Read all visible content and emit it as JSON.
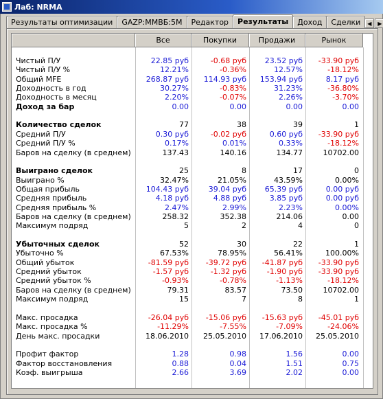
{
  "window": {
    "title": "Лаб: NRMA"
  },
  "tabs": [
    {
      "label": "Результаты оптимизации"
    },
    {
      "label": "GAZP:MMBБ:5M"
    },
    {
      "label": "Редактор"
    },
    {
      "label": "Результаты",
      "active": true
    },
    {
      "label": "Доход"
    },
    {
      "label": "Сделки"
    }
  ],
  "columns": [
    "Все",
    "Покупки",
    "Продажи",
    "Рынок"
  ],
  "rows": [
    {
      "label": "Чистый П/У",
      "values": [
        "22.85 руб",
        "-0.68 руб",
        "23.52 руб",
        "-33.90 руб"
      ],
      "colors": [
        "blue",
        "red",
        "blue",
        "red"
      ],
      "bold": false
    },
    {
      "label": "Чистый П/У %",
      "values": [
        "12.21%",
        "-0.36%",
        "12.57%",
        "-18.12%"
      ],
      "colors": [
        "blue",
        "red",
        "blue",
        "red"
      ],
      "bold": false
    },
    {
      "label": "Общий MFE",
      "values": [
        "268.87 руб",
        "114.93 руб",
        "153.94 руб",
        "8.17 руб"
      ],
      "colors": [
        "blue",
        "blue",
        "blue",
        "blue"
      ],
      "bold": false
    },
    {
      "label": "Доходность в год",
      "values": [
        "30.27%",
        "-0.83%",
        "31.23%",
        "-36.80%"
      ],
      "colors": [
        "blue",
        "red",
        "blue",
        "red"
      ],
      "bold": false
    },
    {
      "label": "Доходность в месяц",
      "values": [
        "2.20%",
        "-0.07%",
        "2.26%",
        "-3.70%"
      ],
      "colors": [
        "blue",
        "red",
        "blue",
        "red"
      ],
      "bold": false
    },
    {
      "label": "Доход за бар",
      "values": [
        "0.00",
        "0.00",
        "0.00",
        "0.00"
      ],
      "colors": [
        "blue",
        "blue",
        "blue",
        "blue"
      ],
      "bold": true
    },
    {
      "label": "",
      "values": [
        "",
        "",
        "",
        ""
      ],
      "colors": [
        "black",
        "black",
        "black",
        "black"
      ],
      "bold": false
    },
    {
      "label": "Количество сделок",
      "values": [
        "77",
        "38",
        "39",
        "1"
      ],
      "colors": [
        "black",
        "black",
        "black",
        "black"
      ],
      "bold": true
    },
    {
      "label": "Средний П/У",
      "values": [
        "0.30 руб",
        "-0.02 руб",
        "0.60 руб",
        "-33.90 руб"
      ],
      "colors": [
        "blue",
        "red",
        "blue",
        "red"
      ],
      "bold": false
    },
    {
      "label": "Средний П/У %",
      "values": [
        "0.17%",
        "0.01%",
        "0.33%",
        "-18.12%"
      ],
      "colors": [
        "blue",
        "blue",
        "blue",
        "red"
      ],
      "bold": false
    },
    {
      "label": "Баров на сделку (в среднем)",
      "values": [
        "137.43",
        "140.16",
        "134.77",
        "10702.00"
      ],
      "colors": [
        "black",
        "black",
        "black",
        "black"
      ],
      "bold": false
    },
    {
      "label": "",
      "values": [
        "",
        "",
        "",
        ""
      ],
      "colors": [
        "black",
        "black",
        "black",
        "black"
      ],
      "bold": false
    },
    {
      "label": "Выиграно сделок",
      "values": [
        "25",
        "8",
        "17",
        "0"
      ],
      "colors": [
        "black",
        "black",
        "black",
        "black"
      ],
      "bold": true
    },
    {
      "label": "Выиграно %",
      "values": [
        "32.47%",
        "21.05%",
        "43.59%",
        "0.00%"
      ],
      "colors": [
        "black",
        "black",
        "black",
        "black"
      ],
      "bold": false
    },
    {
      "label": "Общая прибыль",
      "values": [
        "104.43 руб",
        "39.04 руб",
        "65.39 руб",
        "0.00 руб"
      ],
      "colors": [
        "blue",
        "blue",
        "blue",
        "blue"
      ],
      "bold": false
    },
    {
      "label": "Средняя прибыль",
      "values": [
        "4.18 руб",
        "4.88 руб",
        "3.85 руб",
        "0.00 руб"
      ],
      "colors": [
        "blue",
        "blue",
        "blue",
        "blue"
      ],
      "bold": false
    },
    {
      "label": "Средняя прибыль %",
      "values": [
        "2.47%",
        "2.99%",
        "2.23%",
        "0.00%"
      ],
      "colors": [
        "blue",
        "blue",
        "blue",
        "blue"
      ],
      "bold": false
    },
    {
      "label": "Баров на сделку (в среднем)",
      "values": [
        "258.32",
        "352.38",
        "214.06",
        "0.00"
      ],
      "colors": [
        "black",
        "black",
        "black",
        "black"
      ],
      "bold": false
    },
    {
      "label": "Максимум подряд",
      "values": [
        "5",
        "2",
        "4",
        "0"
      ],
      "colors": [
        "black",
        "black",
        "black",
        "black"
      ],
      "bold": false
    },
    {
      "label": "",
      "values": [
        "",
        "",
        "",
        ""
      ],
      "colors": [
        "black",
        "black",
        "black",
        "black"
      ],
      "bold": false
    },
    {
      "label": "Убыточных сделок",
      "values": [
        "52",
        "30",
        "22",
        "1"
      ],
      "colors": [
        "black",
        "black",
        "black",
        "black"
      ],
      "bold": true
    },
    {
      "label": "Убыточно %",
      "values": [
        "67.53%",
        "78.95%",
        "56.41%",
        "100.00%"
      ],
      "colors": [
        "black",
        "black",
        "black",
        "black"
      ],
      "bold": false
    },
    {
      "label": "Общий убыток",
      "values": [
        "-81.59 руб",
        "-39.72 руб",
        "-41.87 руб",
        "-33.90 руб"
      ],
      "colors": [
        "red",
        "red",
        "red",
        "red"
      ],
      "bold": false
    },
    {
      "label": "Средний убыток",
      "values": [
        "-1.57 руб",
        "-1.32 руб",
        "-1.90 руб",
        "-33.90 руб"
      ],
      "colors": [
        "red",
        "red",
        "red",
        "red"
      ],
      "bold": false
    },
    {
      "label": "Средний убыток %",
      "values": [
        "-0.93%",
        "-0.78%",
        "-1.13%",
        "-18.12%"
      ],
      "colors": [
        "red",
        "red",
        "red",
        "red"
      ],
      "bold": false
    },
    {
      "label": "Баров на сделку (в среднем)",
      "values": [
        "79.31",
        "83.57",
        "73.50",
        "10702.00"
      ],
      "colors": [
        "black",
        "black",
        "black",
        "black"
      ],
      "bold": false
    },
    {
      "label": "Максимум подряд",
      "values": [
        "15",
        "7",
        "8",
        "1"
      ],
      "colors": [
        "black",
        "black",
        "black",
        "black"
      ],
      "bold": false
    },
    {
      "label": "",
      "values": [
        "",
        "",
        "",
        ""
      ],
      "colors": [
        "black",
        "black",
        "black",
        "black"
      ],
      "bold": false
    },
    {
      "label": "Макс. просадка",
      "values": [
        "-26.04 руб",
        "-15.06 руб",
        "-15.63 руб",
        "-45.01 руб"
      ],
      "colors": [
        "red",
        "red",
        "red",
        "red"
      ],
      "bold": false
    },
    {
      "label": "Макс. просадка %",
      "values": [
        "-11.29%",
        "-7.55%",
        "-7.09%",
        "-24.06%"
      ],
      "colors": [
        "red",
        "red",
        "red",
        "red"
      ],
      "bold": false
    },
    {
      "label": "День макс. просадки",
      "values": [
        "18.06.2010",
        "25.05.2010",
        "17.06.2010",
        "25.05.2010"
      ],
      "colors": [
        "black",
        "black",
        "black",
        "black"
      ],
      "bold": false
    },
    {
      "label": "",
      "values": [
        "",
        "",
        "",
        ""
      ],
      "colors": [
        "black",
        "black",
        "black",
        "black"
      ],
      "bold": false
    },
    {
      "label": "Профит фактор",
      "values": [
        "1.28",
        "0.98",
        "1.56",
        "0.00"
      ],
      "colors": [
        "blue",
        "blue",
        "blue",
        "blue"
      ],
      "bold": false
    },
    {
      "label": "Фактор восстановления",
      "values": [
        "0.88",
        "0.04",
        "1.51",
        "0.75"
      ],
      "colors": [
        "blue",
        "blue",
        "blue",
        "blue"
      ],
      "bold": false
    },
    {
      "label": "Коэф. выигрыша",
      "values": [
        "2.66",
        "3.69",
        "2.02",
        "0.00"
      ],
      "colors": [
        "blue",
        "blue",
        "blue",
        "blue"
      ],
      "bold": false
    }
  ],
  "colors": {
    "blue": "#1a1ad6",
    "red": "#e00000",
    "black": "#000000"
  },
  "icons": {
    "app": "app-icon",
    "scroll_left": "scroll-left-icon",
    "scroll_right": "scroll-right-icon"
  }
}
